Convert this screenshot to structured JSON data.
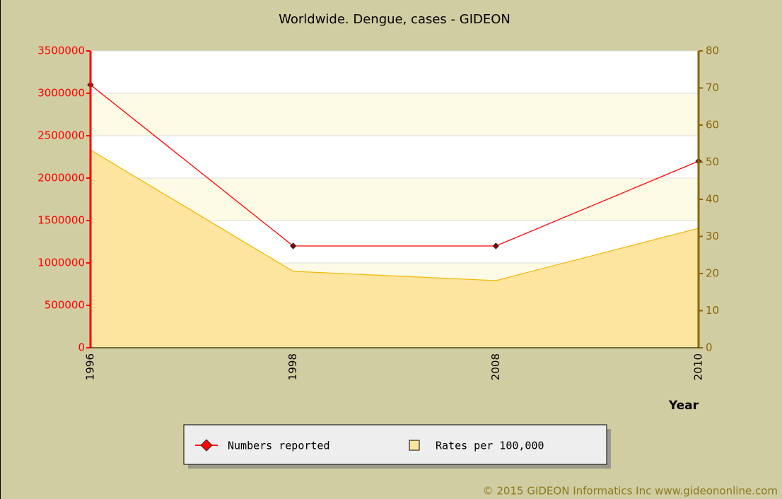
{
  "chart_data": {
    "type": "line",
    "title": "Worldwide. Dengue, cases - GIDEON",
    "x_label": "Year",
    "categories": [
      "1996",
      "1998",
      "2008",
      "2010"
    ],
    "series": [
      {
        "name": "Numbers reported",
        "color": "#ff0000",
        "type": "line",
        "values": [
          3100000,
          1200000,
          1200000,
          2200000
        ]
      },
      {
        "name": "Rates per 100,000",
        "color": "#fde5a0",
        "type": "area",
        "axis": "y2",
        "values": [
          53.3,
          20.6,
          18.1,
          32.2
        ]
      }
    ],
    "ylim": [
      0,
      3500000
    ],
    "yticks": [
      0,
      500000,
      1000000,
      1500000,
      2000000,
      2500000,
      3000000,
      3500000
    ],
    "y2lim": [
      0,
      80
    ],
    "y2ticks": [
      0,
      10,
      20,
      30,
      40,
      50,
      60,
      70,
      80
    ],
    "grid": true,
    "legend": "bottom",
    "footer": "© 2015 GIDEON Informatics Inc www.gideononline.com"
  }
}
